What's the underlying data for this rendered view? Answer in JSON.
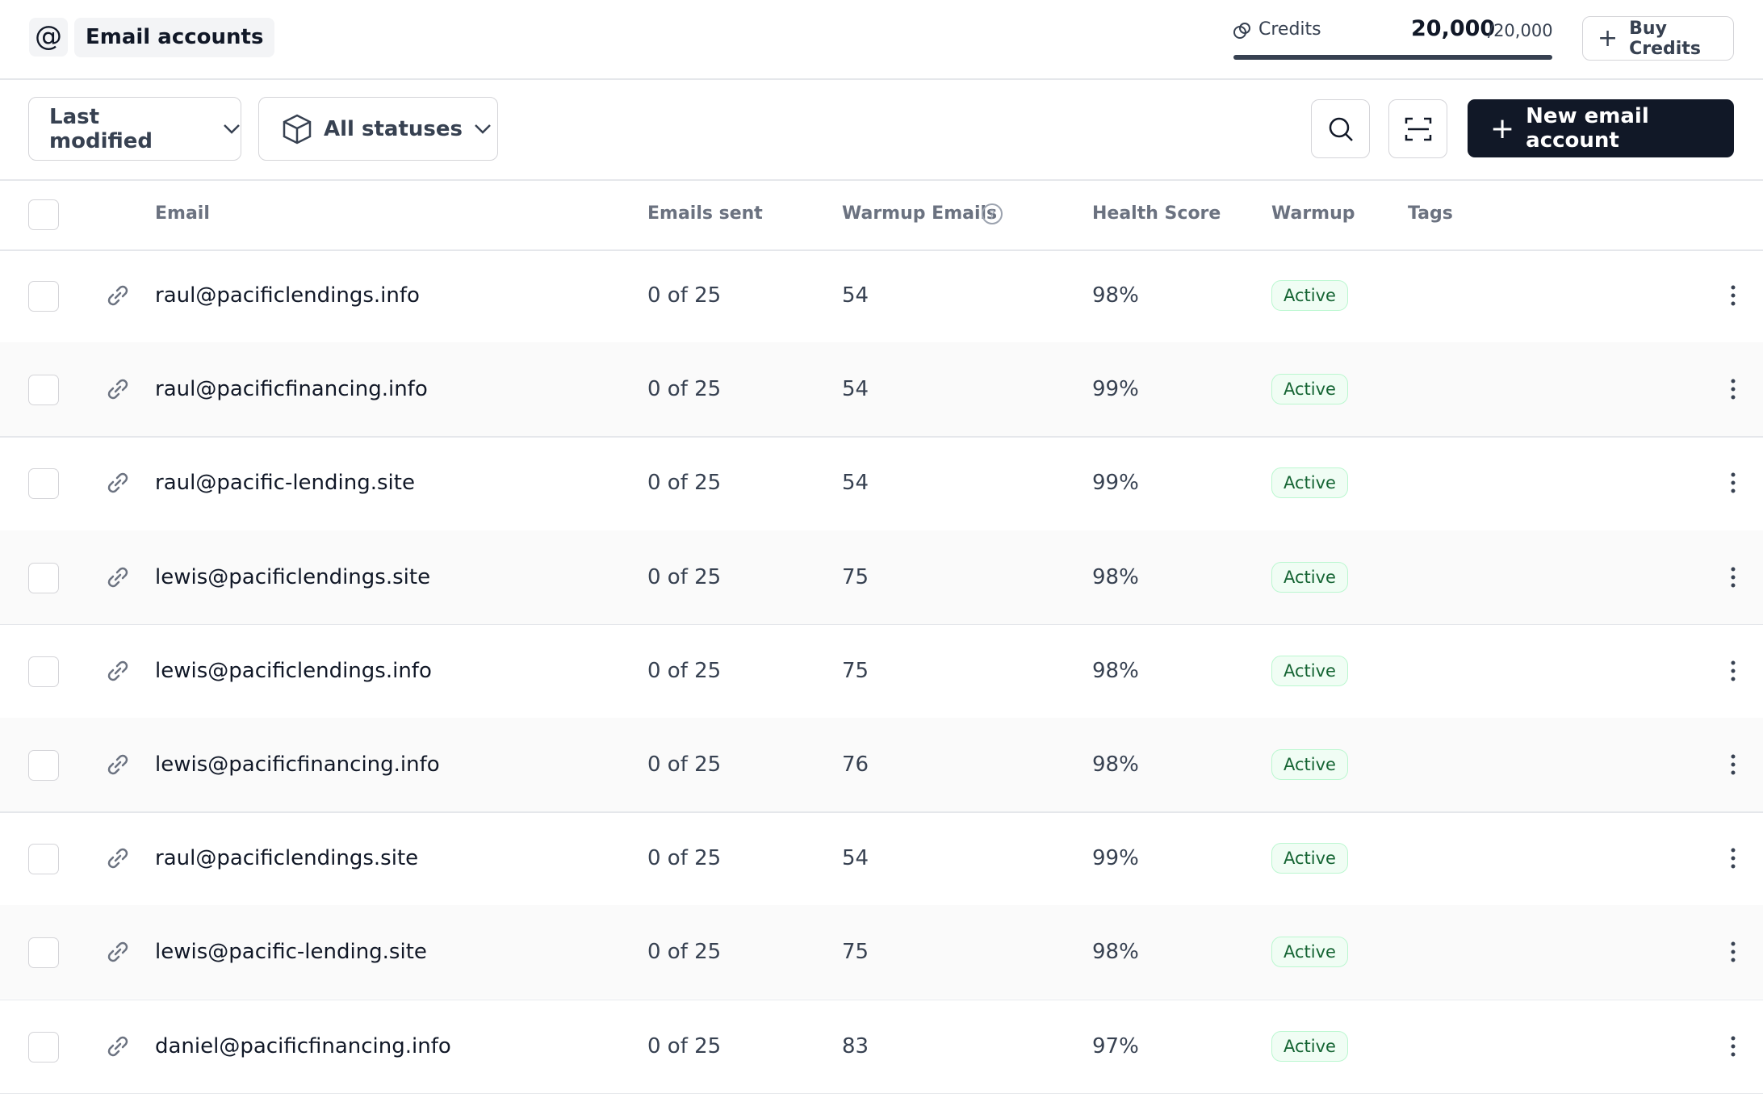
{
  "header": {
    "title": "Email accounts",
    "credits_label": "Credits",
    "credits_value": "20,000",
    "credits_total": "/20,000",
    "buy_button": "Buy Credits"
  },
  "toolbar": {
    "sort": "Last modified",
    "status_filter": "All statuses",
    "new_button": "New email account"
  },
  "table": {
    "columns": [
      "Email",
      "Emails sent",
      "Warmup Emails",
      "Health Score",
      "Warmup",
      "Tags"
    ],
    "rows": [
      [
        "raul@pacificlendings.info",
        "0 of 25",
        "54",
        "98%",
        "Active"
      ],
      [
        "raul@pacificfinancing.info",
        "0 of 25",
        "54",
        "99%",
        "Active"
      ],
      [
        "raul@pacific-lending.site",
        "0 of 25",
        "54",
        "99%",
        "Active"
      ],
      [
        "lewis@pacificlendings.site",
        "0 of 25",
        "75",
        "98%",
        "Active"
      ],
      [
        "lewis@pacificlendings.info",
        "0 of 25",
        "75",
        "98%",
        "Active"
      ],
      [
        "lewis@pacificfinancing.info",
        "0 of 25",
        "76",
        "98%",
        "Active"
      ],
      [
        "raul@pacificlendings.site",
        "0 of 25",
        "54",
        "99%",
        "Active"
      ],
      [
        "lewis@pacific-lending.site",
        "0 of 25",
        "75",
        "98%",
        "Active"
      ],
      [
        "daniel@pacificfinancing.info",
        "0 of 25",
        "83",
        "97%",
        "Active"
      ]
    ]
  }
}
